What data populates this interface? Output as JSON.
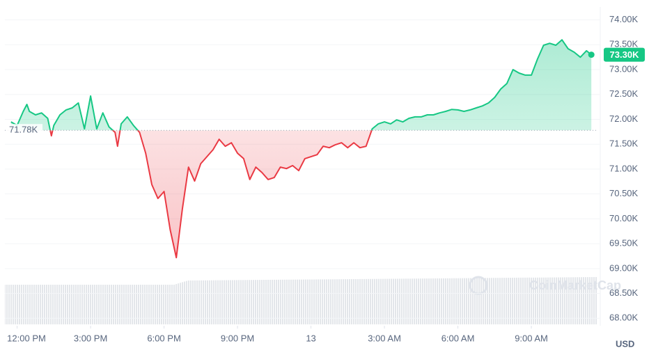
{
  "chart_data": {
    "type": "line",
    "x": [
      -0.25,
      0,
      0.25,
      0.4,
      0.5,
      0.75,
      1,
      1.25,
      1.4,
      1.5,
      1.75,
      2,
      2.25,
      2.5,
      2.75,
      3,
      3.25,
      3.5,
      3.75,
      4,
      4.1,
      4.25,
      4.5,
      4.75,
      5,
      5.25,
      5.5,
      5.75,
      6,
      6.25,
      6.5,
      6.75,
      7,
      7.25,
      7.5,
      7.75,
      8,
      8.25,
      8.5,
      8.75,
      9,
      9.25,
      9.5,
      9.75,
      10,
      10.25,
      10.5,
      10.75,
      11,
      11.25,
      11.5,
      11.75,
      12,
      12.25,
      12.5,
      12.75,
      13,
      13.25,
      13.5,
      13.75,
      14,
      14.25,
      14.5,
      14.75,
      15,
      15.25,
      15.5,
      15.75,
      16,
      16.25,
      16.5,
      16.75,
      17,
      17.25,
      17.5,
      17.75,
      18,
      18.25,
      18.5,
      18.75,
      19,
      19.25,
      19.5,
      19.75,
      20,
      20.25,
      20.5,
      20.75,
      21,
      21.25,
      21.5,
      21.75,
      22,
      22.25,
      22.5,
      22.75,
      23,
      23.25,
      23.45
    ],
    "series": [
      {
        "values": [
          71950,
          71880,
          72160,
          72300,
          72160,
          72090,
          72130,
          72020,
          71670,
          71880,
          72090,
          72190,
          72230,
          72330,
          71810,
          72470,
          71810,
          72130,
          71850,
          71740,
          71460,
          71910,
          72050,
          71880,
          71740,
          71320,
          70690,
          70410,
          70550,
          69780,
          69220,
          70200,
          71040,
          70760,
          71110,
          71250,
          71390,
          71600,
          71460,
          71530,
          71320,
          71210,
          70790,
          71040,
          70930,
          70790,
          70830,
          71040,
          71010,
          71070,
          70970,
          71210,
          71250,
          71290,
          71460,
          71430,
          71490,
          71530,
          71430,
          71530,
          71430,
          71460,
          71810,
          71910,
          71950,
          71910,
          71990,
          71950,
          72020,
          72050,
          72050,
          72090,
          72090,
          72130,
          72160,
          72200,
          72190,
          72160,
          72190,
          72230,
          72270,
          72330,
          72440,
          72610,
          72720,
          73000,
          72930,
          72890,
          72890,
          73210,
          73490,
          73530,
          73490,
          73600,
          73420,
          73350,
          73250,
          73380,
          73300
        ]
      }
    ],
    "color_up": "#16c784",
    "color_down": "#ea3943",
    "baseline": {
      "value": 71780,
      "label": "71.78K"
    },
    "current_price": {
      "value": 73300,
      "label": "73.30K"
    },
    "xlim": [
      -0.5,
      23.7
    ],
    "ylim": [
      67850,
      74260
    ],
    "xticks": [
      {
        "value": 0,
        "label": "12:00 PM"
      },
      {
        "value": 3,
        "label": "3:00 PM"
      },
      {
        "value": 6,
        "label": "6:00 PM"
      },
      {
        "value": 9,
        "label": "9:00 PM"
      },
      {
        "value": 12,
        "label": "13"
      },
      {
        "value": 15,
        "label": "3:00 AM"
      },
      {
        "value": 18,
        "label": "6:00 AM"
      },
      {
        "value": 21,
        "label": "9:00 AM"
      }
    ],
    "yticks": [
      {
        "value": 68000,
        "label": "68.00K"
      },
      {
        "value": 68500,
        "label": "68.50K"
      },
      {
        "value": 69000,
        "label": "69.00K"
      },
      {
        "value": 69500,
        "label": "69.50K"
      },
      {
        "value": 70000,
        "label": "70.00K"
      },
      {
        "value": 70500,
        "label": "70.50K"
      },
      {
        "value": 71000,
        "label": "71.00K"
      },
      {
        "value": 71500,
        "label": "71.50K"
      },
      {
        "value": 72000,
        "label": "72.00K"
      },
      {
        "value": 72500,
        "label": "72.50K"
      },
      {
        "value": 73000,
        "label": "73.00K"
      },
      {
        "value": 73500,
        "label": "73.50K"
      },
      {
        "value": 74000,
        "label": "74.00K"
      }
    ],
    "grid": true,
    "currency": "USD",
    "watermark": "CoinMarketCap"
  }
}
